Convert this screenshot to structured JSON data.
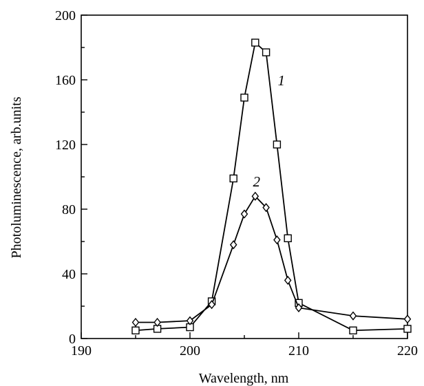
{
  "chart_data": {
    "type": "line",
    "title": "",
    "xlabel": "Wavelength, nm",
    "ylabel": "Photoluminescence, arb.units",
    "xlim": [
      190,
      220
    ],
    "ylim": [
      0,
      200
    ],
    "xticks": [
      190,
      200,
      210,
      220
    ],
    "yticks": [
      0,
      40,
      80,
      120,
      160,
      200
    ],
    "grid": false,
    "legend": "none",
    "series": [
      {
        "label": "1",
        "marker": "square",
        "color": "#000000",
        "x": [
          195,
          197,
          200,
          202,
          204,
          205,
          206,
          207,
          208,
          209,
          210,
          215,
          220
        ],
        "y": [
          5,
          6,
          7,
          23,
          99,
          149,
          183,
          177,
          120,
          62,
          22,
          5,
          6
        ]
      },
      {
        "label": "2",
        "marker": "diamond",
        "color": "#000000",
        "x": [
          195,
          197,
          200,
          202,
          204,
          205,
          206,
          207,
          208,
          209,
          210,
          215,
          220
        ],
        "y": [
          10,
          10,
          11,
          21,
          58,
          77,
          88,
          81,
          61,
          36,
          19,
          14,
          12
        ]
      }
    ]
  }
}
